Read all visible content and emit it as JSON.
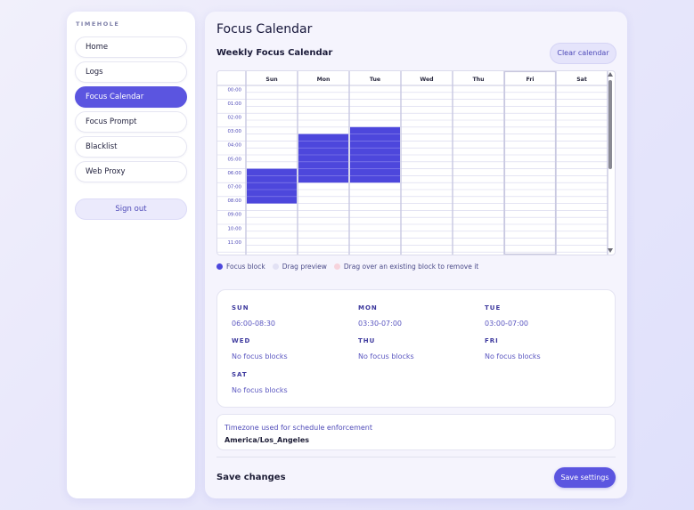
{
  "sidebar": {
    "brand": "TIMEHOLE",
    "items": [
      {
        "label": "Home",
        "active": false
      },
      {
        "label": "Logs",
        "active": false
      },
      {
        "label": "Focus Calendar",
        "active": true
      },
      {
        "label": "Focus Prompt",
        "active": false
      },
      {
        "label": "Blacklist",
        "active": false
      },
      {
        "label": "Web Proxy",
        "active": false
      }
    ],
    "sign_out": "Sign out"
  },
  "main": {
    "title": "Focus Calendar",
    "section_title": "Weekly Focus Calendar",
    "clear_label": "Clear calendar"
  },
  "calendar": {
    "days": [
      "Sun",
      "Mon",
      "Tue",
      "Wed",
      "Thu",
      "Fri",
      "Sat"
    ],
    "hours": [
      "00:00",
      "01:00",
      "02:00",
      "03:00",
      "04:00",
      "05:00",
      "06:00",
      "07:00",
      "08:00",
      "09:00",
      "10:00",
      "11:00"
    ],
    "blocks": [
      {
        "day": 0,
        "start": 6.0,
        "end": 8.5
      },
      {
        "day": 1,
        "start": 3.5,
        "end": 7.0
      },
      {
        "day": 2,
        "start": 3.0,
        "end": 7.0
      }
    ],
    "highlight_day": 5,
    "block_color": "#4d47dc",
    "line_color": "#d4d4ec"
  },
  "legend": [
    {
      "label": "Focus block",
      "color": "#4d47dc"
    },
    {
      "label": "Drag preview",
      "color": "#e2e1f4"
    },
    {
      "label": "Drag over an existing block to remove it",
      "color": "#f6d3dc"
    }
  ],
  "summary": [
    {
      "day": "SUN",
      "value": "06:00-08:30"
    },
    {
      "day": "MON",
      "value": "03:30-07:00"
    },
    {
      "day": "TUE",
      "value": "03:00-07:00"
    },
    {
      "day": "WED",
      "value": "No focus blocks"
    },
    {
      "day": "THU",
      "value": "No focus blocks"
    },
    {
      "day": "FRI",
      "value": "No focus blocks"
    },
    {
      "day": "SAT",
      "value": "No focus blocks"
    }
  ],
  "timezone": {
    "label": "Timezone used for schedule enforcement",
    "value": "America/Los_Angeles"
  },
  "footer": {
    "title": "Save changes",
    "save_label": "Save settings"
  }
}
